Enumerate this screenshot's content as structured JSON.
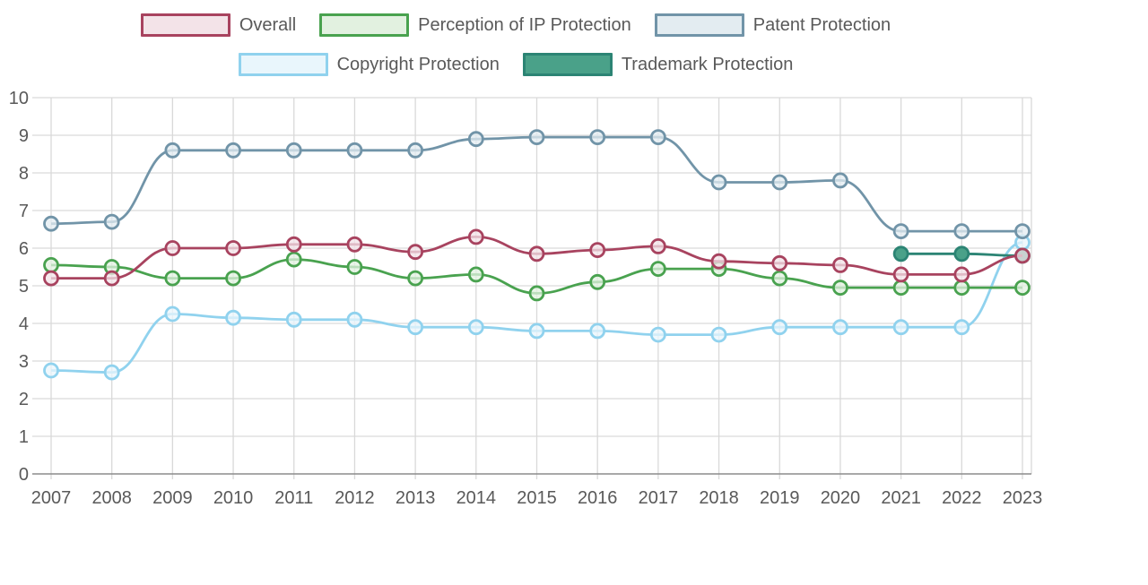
{
  "chart_data": {
    "type": "line",
    "title": "",
    "xlabel": "",
    "ylabel": "",
    "x": [
      2007,
      2008,
      2009,
      2010,
      2011,
      2012,
      2013,
      2014,
      2015,
      2016,
      2017,
      2018,
      2019,
      2020,
      2021,
      2022,
      2023
    ],
    "ylim": [
      0,
      10
    ],
    "yticks": [
      0,
      1,
      2,
      3,
      4,
      5,
      6,
      7,
      8,
      9,
      10
    ],
    "grid": true,
    "legend_position": "top",
    "axis_text_color": "#595959",
    "gridline_color": "#d9d9d9",
    "baseline_color": "#8c8c8c",
    "series": [
      {
        "name": "Overall",
        "line_color": "#a8435f",
        "fill_color": "#f3e3e8",
        "values": [
          5.2,
          5.2,
          6.0,
          6.0,
          6.1,
          6.1,
          5.9,
          6.3,
          5.85,
          5.95,
          6.05,
          5.65,
          5.6,
          5.55,
          5.3,
          5.3,
          5.8
        ]
      },
      {
        "name": "Perception of IP Protection",
        "line_color": "#49a24f",
        "fill_color": "#e2f1e0",
        "values": [
          5.55,
          5.5,
          5.2,
          5.2,
          5.7,
          5.5,
          5.2,
          5.3,
          4.8,
          5.1,
          5.45,
          5.45,
          5.2,
          4.95,
          4.95,
          4.95,
          4.95
        ]
      },
      {
        "name": "Patent Protection",
        "line_color": "#7194a8",
        "fill_color": "#e3ecf1",
        "values": [
          6.65,
          6.7,
          8.6,
          8.6,
          8.6,
          8.6,
          8.6,
          8.9,
          8.95,
          8.95,
          8.95,
          7.75,
          7.75,
          7.8,
          6.45,
          6.45,
          6.45
        ]
      },
      {
        "name": "Copyright Protection",
        "line_color": "#90d2ee",
        "fill_color": "#e9f6fc",
        "values": [
          2.75,
          2.7,
          4.25,
          4.15,
          4.1,
          4.1,
          3.9,
          3.9,
          3.8,
          3.8,
          3.7,
          3.7,
          3.9,
          3.9,
          3.9,
          3.9,
          6.15
        ]
      },
      {
        "name": "Trademark Protection",
        "line_color": "#2c8474",
        "fill_color": "#4aa189",
        "solid_marker": true,
        "values": [
          null,
          null,
          null,
          null,
          null,
          null,
          null,
          null,
          null,
          null,
          null,
          null,
          null,
          null,
          5.85,
          5.85,
          5.8
        ]
      }
    ]
  }
}
